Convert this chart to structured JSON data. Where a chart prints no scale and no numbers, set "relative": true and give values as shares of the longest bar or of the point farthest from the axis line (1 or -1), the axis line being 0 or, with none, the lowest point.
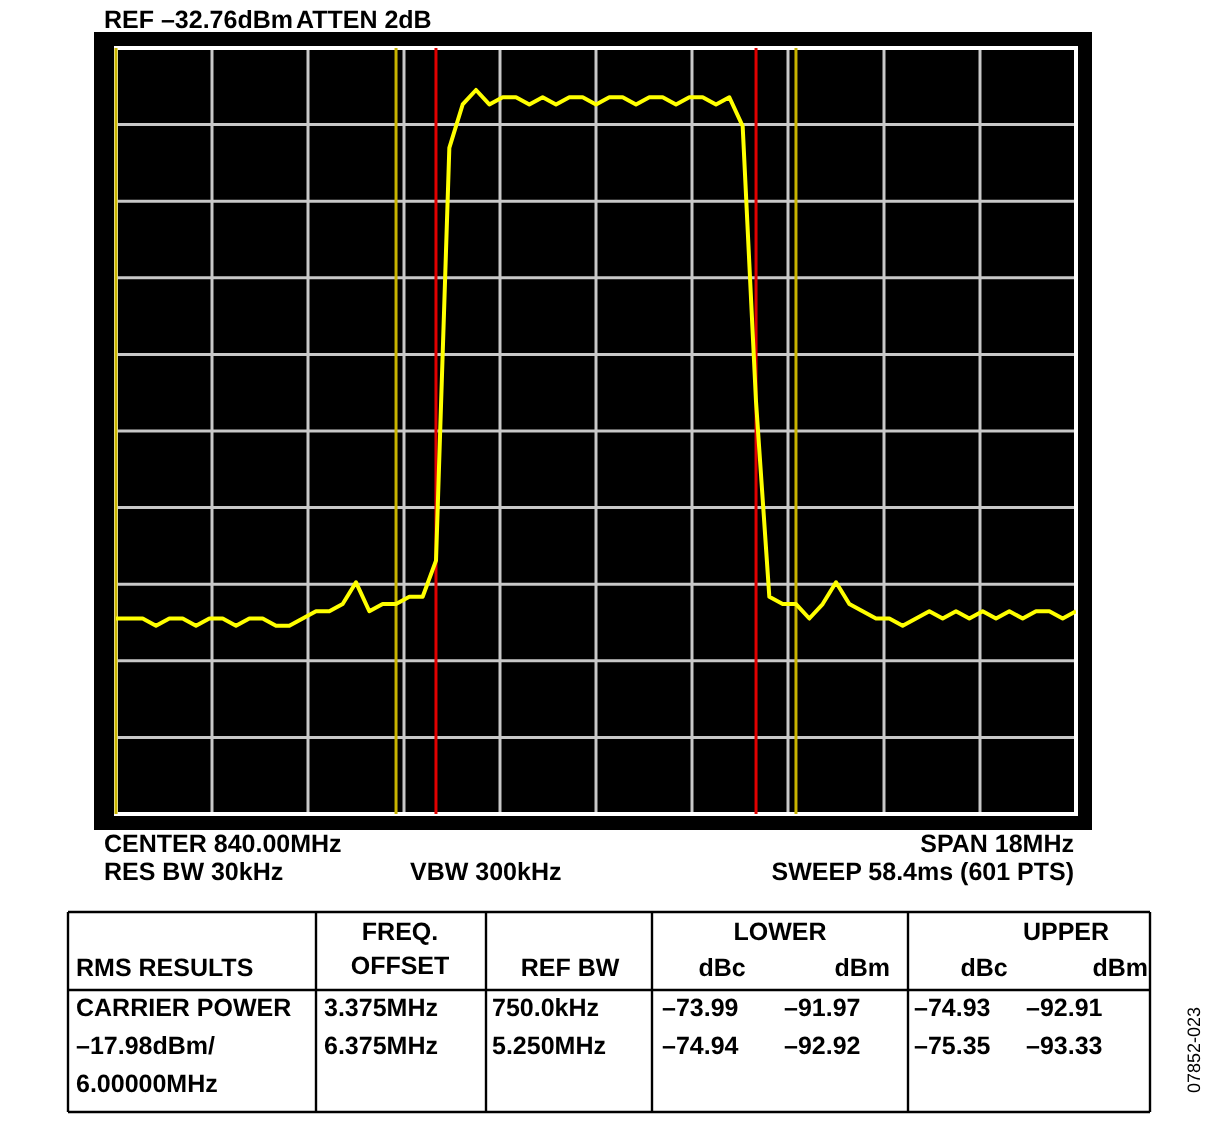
{
  "chart_data": {
    "type": "line",
    "title": "REF –32.76dBm",
    "relative": true,
    "grid": true,
    "categories": [
      null,
      null,
      null,
      null,
      null,
      null,
      null,
      null,
      null,
      null,
      null,
      null,
      null,
      null,
      null,
      null,
      null,
      null,
      null,
      null,
      null,
      null,
      null,
      null,
      null,
      null,
      null,
      null,
      null,
      null,
      null,
      null,
      null,
      null,
      null,
      null,
      null,
      null,
      null,
      null,
      null,
      null,
      null,
      null,
      null,
      null,
      null,
      null,
      null,
      null,
      null,
      null,
      null,
      null,
      null,
      null,
      null,
      null,
      null,
      null,
      null,
      null,
      null,
      null,
      null,
      null,
      null,
      null,
      null,
      null,
      null,
      null,
      null
    ],
    "series": [
      {
        "color": "#ffff00",
        "line_style": "solid",
        "values": [
          0.27,
          0.27,
          0.27,
          0.26,
          0.27,
          0.27,
          0.26,
          0.27,
          0.27,
          0.26,
          0.27,
          0.27,
          0.26,
          0.26,
          0.27,
          0.28,
          0.28,
          0.29,
          0.32,
          0.28,
          0.29,
          0.29,
          0.3,
          0.3,
          0.35,
          0.92,
          0.98,
          1,
          0.98,
          0.99,
          0.99,
          0.98,
          0.99,
          0.98,
          0.99,
          0.99,
          0.98,
          0.99,
          0.99,
          0.98,
          0.99,
          0.99,
          0.98,
          0.99,
          0.99,
          0.98,
          0.99,
          0.95,
          0.57,
          0.3,
          0.29,
          0.29,
          0.27,
          0.29,
          0.32,
          0.29,
          0.28,
          0.27,
          0.27,
          0.26,
          0.27,
          0.28,
          0.27,
          0.28,
          0.27,
          0.28,
          0.27,
          0.28,
          0.27,
          0.28,
          0.28,
          0.27,
          0.28
        ]
      }
    ],
    "annotations": [
      "ATTEN 2dB",
      "CENTER 840.00MHz",
      "SPAN 18MHz",
      "RES BW 30kHz",
      "VBW 300kHz",
      "SWEEP 58.4ms (601 PTS)",
      "FREQ.",
      "OFFSET",
      "RMS RESULTS",
      "REF BW",
      "LOWER",
      "dBc",
      "dBm",
      "UPPER",
      "dBc",
      "dBm",
      "CARRIER POWER",
      "–17.98dBm/",
      "6.00000MHz",
      "3.375MHz",
      "6.375MHz",
      "750.0kHz",
      "5.250MHz",
      "–73.99",
      "–91.97",
      "–74.93",
      "–92.91",
      "–74.94",
      "–92.92",
      "–75.35",
      "–93.33",
      "07852-023"
    ]
  }
}
